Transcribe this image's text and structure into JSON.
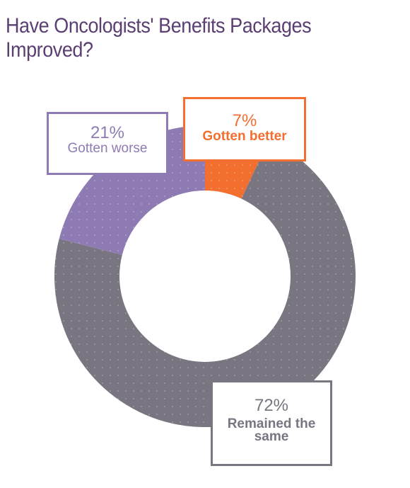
{
  "title": "Have Oncologists' Benefits Packages Improved?",
  "colors": {
    "worse": "#8f7bb3",
    "better": "#f26f30",
    "same": "#797581",
    "title": "#5b3f73"
  },
  "chart_data": {
    "type": "pie",
    "style": "donut",
    "title": "Have Oncologists' Benefits Packages Improved?",
    "slices": [
      {
        "label": "Gotten better",
        "value": 7,
        "display": "7%"
      },
      {
        "label": "Remained the same",
        "value": 72,
        "display": "72%"
      },
      {
        "label": "Gotten worse",
        "value": 21,
        "display": "21%"
      }
    ]
  }
}
